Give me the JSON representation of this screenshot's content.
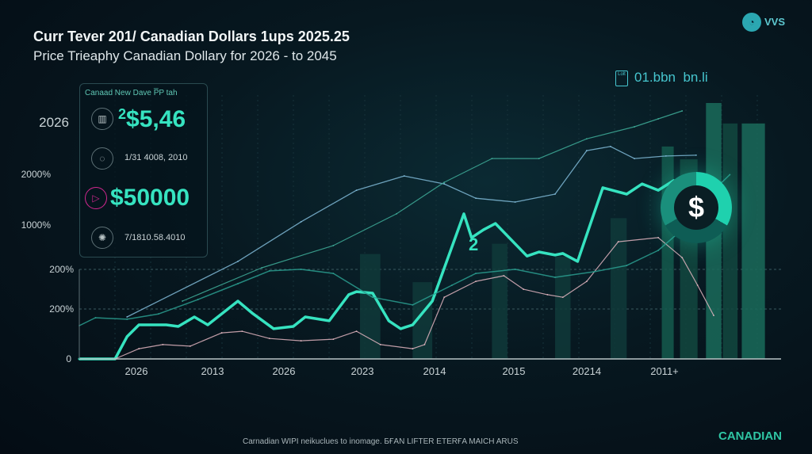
{
  "header": {
    "title": "Curr Tever 201/ Canadian Dollars 1ups 2025.25",
    "subtitle": "Price Trieaphy  Canadian Dollary for 2026 - to 2045"
  },
  "logo": {
    "text": "VVS",
    "icon": "logo-icon"
  },
  "stats_badge": {
    "icon_text": "Lolt",
    "value1": "01.bbn",
    "value2": "bn.li"
  },
  "card": {
    "header": "Canaad  New Dave P̅P  tah",
    "rows": [
      {
        "icon": "bar-chart-icon",
        "prefix": "2",
        "value": "$5,46"
      },
      {
        "icon": "shield-icon",
        "value": "1/31 4008, 2010"
      },
      {
        "icon": "play-icon",
        "value": "$50000"
      },
      {
        "icon": "gear-icon",
        "value": "7/1810.58.4010"
      }
    ],
    "year_label": "2026"
  },
  "marker_label": "2",
  "dollar_icon": "$",
  "footer": "Carnadian WIPI neikuclues to inomage. БҒAN LIFTER ETERҒA MAICH ARUS",
  "brand": "CANADIAN",
  "colors": {
    "accent": "#36e3c0",
    "line_blue": "#7fb8d6",
    "line_pink": "#e2b5bf",
    "line_teal": "#2a9d8f",
    "background": "#06141c"
  },
  "chart_data": {
    "type": "line",
    "title": "Curr Tever 201/ Canadian Dollars 1ups 2025.25",
    "subtitle": "Price Trieaphy  Canadian Dollary for 2026 - to 2045",
    "grid": true,
    "xlim": [
      0,
      100
    ],
    "ylim": [
      0,
      100
    ],
    "x_tick_labels": [
      "2026",
      "2013",
      "2026",
      "2023",
      "2014",
      "2015",
      "20214",
      "2011+"
    ],
    "y_tick_labels": [
      "0",
      "200%",
      "200%",
      "1000%",
      "2000%",
      "2026"
    ],
    "series": [
      {
        "color": "#36e3c0",
        "width": 3.5,
        "points": [
          [
            0,
            0
          ],
          [
            5.1,
            0
          ],
          [
            6.8,
            8.7
          ],
          [
            8.5,
            13.3
          ],
          [
            12.4,
            13.3
          ],
          [
            14.1,
            12.7
          ],
          [
            16.4,
            16.4
          ],
          [
            18.3,
            13.3
          ],
          [
            22.6,
            22.6
          ],
          [
            24.6,
            18
          ],
          [
            27.7,
            11.8
          ],
          [
            30.5,
            12.7
          ],
          [
            32.2,
            16.4
          ],
          [
            35.6,
            14.9
          ],
          [
            38.4,
            25.1
          ],
          [
            39.5,
            26.3
          ],
          [
            41.8,
            25.7
          ],
          [
            44.1,
            14.9
          ],
          [
            45.8,
            11.8
          ],
          [
            47.5,
            13.3
          ],
          [
            50.3,
            22.6
          ],
          [
            54.8,
            56.7
          ],
          [
            55.9,
            47.4
          ],
          [
            57.6,
            50.5
          ],
          [
            59.3,
            52.9
          ],
          [
            63.8,
            40.2
          ],
          [
            65.5,
            41.8
          ],
          [
            67.8,
            40.6
          ],
          [
            68.9,
            41.2
          ],
          [
            71,
            38.1
          ],
          [
            74.6,
            66.9
          ],
          [
            78,
            64.4
          ],
          [
            80.2,
            68.4
          ],
          [
            82.5,
            65.9
          ],
          [
            84.7,
            69.7
          ],
          [
            87.6,
            66.6
          ]
        ]
      },
      {
        "color": "#7fb8d6",
        "width": 1.3,
        "points": [
          [
            6.8,
            16.4
          ],
          [
            22.6,
            38.1
          ],
          [
            31.6,
            53.6
          ],
          [
            39.5,
            65.9
          ],
          [
            46.3,
            71.5
          ],
          [
            52,
            68.4
          ],
          [
            56.5,
            62.8
          ],
          [
            62.1,
            61.3
          ],
          [
            67.8,
            64.4
          ],
          [
            72.3,
            81.4
          ],
          [
            75.7,
            83
          ],
          [
            79.1,
            78.3
          ],
          [
            83.6,
            79.3
          ],
          [
            87.9,
            79.6
          ]
        ]
      },
      {
        "color": "#e2b5bf",
        "width": 1.2,
        "points": [
          [
            5.1,
            0
          ],
          [
            8.5,
            4
          ],
          [
            11.9,
            5.6
          ],
          [
            15.8,
            5
          ],
          [
            20.3,
            10.2
          ],
          [
            23.2,
            10.8
          ],
          [
            27.1,
            8
          ],
          [
            31.6,
            7.1
          ],
          [
            36.2,
            7.7
          ],
          [
            39.5,
            10.8
          ],
          [
            42.9,
            5.6
          ],
          [
            47.5,
            4
          ],
          [
            49.2,
            5.6
          ],
          [
            52,
            24.1
          ],
          [
            56.5,
            30.3
          ],
          [
            60.5,
            32.5
          ],
          [
            63.3,
            27.2
          ],
          [
            66.7,
            25.1
          ],
          [
            68.9,
            24.1
          ],
          [
            72.3,
            30.3
          ],
          [
            76.8,
            45.8
          ],
          [
            82.5,
            47.4
          ],
          [
            85.9,
            39.6
          ],
          [
            88.1,
            28.8
          ],
          [
            90.4,
            17
          ]
        ]
      },
      {
        "color": "#2a9d8f",
        "width": 1.5,
        "points": [
          [
            0,
            13
          ],
          [
            2.3,
            16.1
          ],
          [
            6.8,
            15.5
          ],
          [
            11.3,
            17.6
          ],
          [
            16.9,
            23.2
          ],
          [
            22.6,
            29.4
          ],
          [
            27.1,
            34.4
          ],
          [
            31.6,
            35
          ],
          [
            36.2,
            33.4
          ],
          [
            41.8,
            24.1
          ],
          [
            47.5,
            21.1
          ],
          [
            53.1,
            28.8
          ],
          [
            56.5,
            33.4
          ],
          [
            62.1,
            35
          ],
          [
            67.8,
            31.9
          ],
          [
            73.4,
            34.1
          ],
          [
            78,
            36.5
          ],
          [
            82.5,
            42.4
          ],
          [
            85.9,
            50.5
          ],
          [
            88.1,
            59.8
          ],
          [
            90.4,
            65.9
          ],
          [
            92.7,
            72
          ]
        ]
      },
      {
        "color": "#3fae9a",
        "width": 1.2,
        "points": [
          [
            14.7,
            22.6
          ],
          [
            26,
            35.6
          ],
          [
            36.2,
            44.3
          ],
          [
            45.2,
            56.7
          ],
          [
            52,
            69
          ],
          [
            58.8,
            78.3
          ],
          [
            65.5,
            78.3
          ],
          [
            72.3,
            86
          ],
          [
            79.1,
            90.7
          ],
          [
            82.5,
            93.8
          ],
          [
            85.9,
            96.9
          ]
        ]
      }
    ],
    "bars": [
      {
        "x0": 40,
        "x1": 42.9,
        "value": 41,
        "color": "#0f3a3a"
      },
      {
        "x0": 47.5,
        "x1": 50.3,
        "value": 30,
        "color": "#0f3a3a"
      },
      {
        "x0": 58.8,
        "x1": 61,
        "value": 45,
        "color": "#0f3a3a"
      },
      {
        "x0": 67.8,
        "x1": 70,
        "value": 40,
        "color": "#0f3a3a"
      },
      {
        "x0": 75.7,
        "x1": 78,
        "value": 55,
        "color": "#0f3a3a"
      },
      {
        "x0": 83,
        "x1": 84.7,
        "value": 83,
        "color": "#145a4e"
      },
      {
        "x0": 85.6,
        "x1": 88.1,
        "value": 78,
        "color": "#12483f"
      },
      {
        "x0": 89.3,
        "x1": 91.5,
        "value": 100,
        "color": "#1a6b5a"
      },
      {
        "x0": 91.7,
        "x1": 93.8,
        "value": 92,
        "color": "#12483f"
      },
      {
        "x0": 94.4,
        "x1": 97.7,
        "value": 92,
        "color": "#1a6b5a"
      }
    ]
  }
}
